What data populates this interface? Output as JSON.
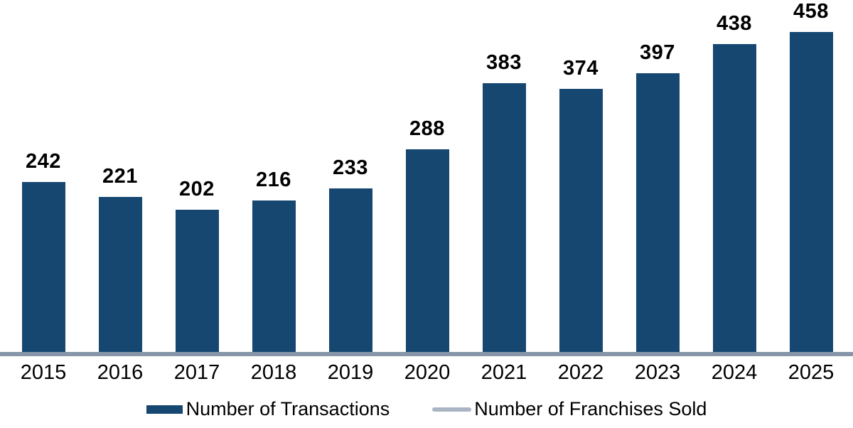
{
  "chart_data": {
    "type": "bar",
    "title": "",
    "xlabel": "",
    "ylabel": "",
    "grid": false,
    "legend_position": "bottom",
    "categories": [
      "2015",
      "2016",
      "2017",
      "2018",
      "2019",
      "2020",
      "2021",
      "2022",
      "2023",
      "2024",
      "2025"
    ],
    "series": [
      {
        "name": "Number of Transactions",
        "type": "bar",
        "color": "#154771",
        "values": [
          242,
          221,
          202,
          216,
          233,
          288,
          383,
          374,
          397,
          438,
          458
        ],
        "data_labels": true
      },
      {
        "name": "Number of Franchises Sold",
        "type": "line",
        "color": "#A9B5C5",
        "appearance": "flat gray-blue line running along the x-axis baseline; no distinct values visible"
      }
    ],
    "baseline_color": "#8695A8",
    "label_text_color": "#000000"
  },
  "legend": {
    "items": [
      {
        "label": "Number of Transactions",
        "swatch": "bar"
      },
      {
        "label": "Number of Franchises Sold",
        "swatch": "line"
      }
    ]
  }
}
